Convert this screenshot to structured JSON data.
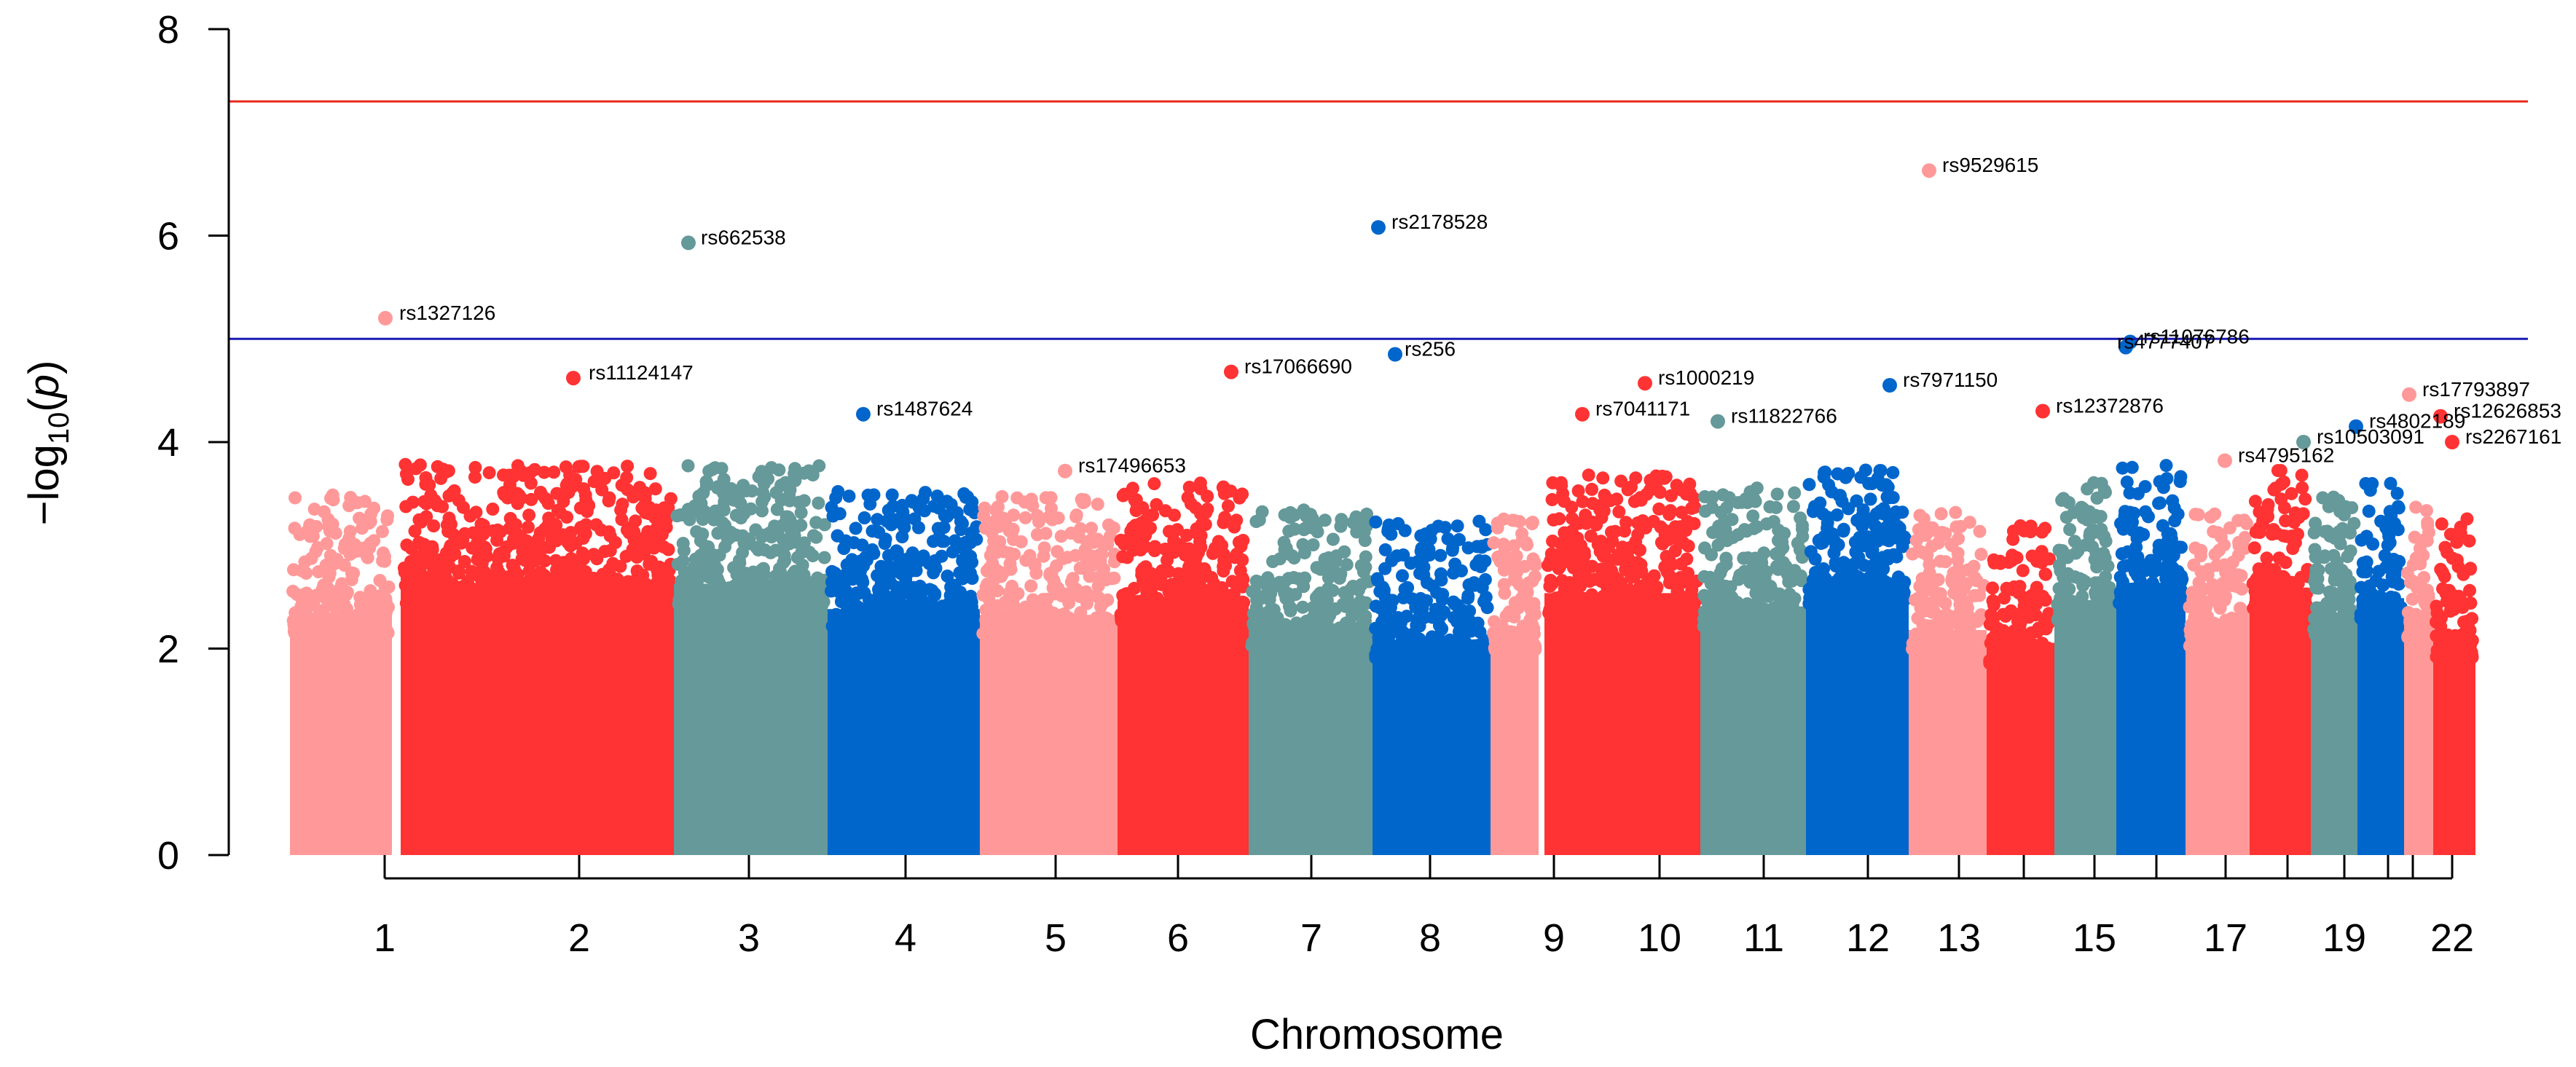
{
  "chart_data": {
    "type": "scatter",
    "title": "",
    "xlabel": "Chromosome",
    "ylabel": "−log10(p)",
    "ylim": [
      0,
      8
    ],
    "y_ticks": [
      "0",
      "2",
      "4",
      "6",
      "8"
    ],
    "x_tick_labels": [
      "1",
      "2",
      "3",
      "4",
      "5",
      "6",
      "7",
      "8",
      "9",
      "10",
      "11",
      "12",
      "13",
      "15",
      "17",
      "19",
      "22"
    ],
    "chromosomes": [
      "1",
      "2",
      "3",
      "4",
      "5",
      "6",
      "7",
      "8",
      "9",
      "10",
      "11",
      "12",
      "13",
      "14",
      "15",
      "16",
      "17",
      "18",
      "19",
      "20",
      "21",
      "22"
    ],
    "chromosome_colors": [
      "#FF9999",
      "#FF3333",
      "#669999",
      "#0066CC"
    ],
    "thresholds": [
      {
        "value": 7.3,
        "color": "#E8281E"
      },
      {
        "value": 5.0,
        "color": "#1A1AB4"
      }
    ],
    "grid": false,
    "points": [
      {
        "chr": "1",
        "snp": "rs1327126",
        "y": 5.2
      },
      {
        "chr": "3",
        "snp": "rs662538",
        "y": 5.93
      },
      {
        "chr": "2",
        "snp": "rs11124147",
        "y": 4.62
      },
      {
        "chr": "4",
        "snp": "rs1487624",
        "y": 4.27
      },
      {
        "chr": "5",
        "snp": "rs17496653",
        "y": 3.72
      },
      {
        "chr": "6",
        "snp": "rs17066690",
        "y": 4.68
      },
      {
        "chr": "8",
        "snp": "rs2178528",
        "y": 6.08
      },
      {
        "chr": "8",
        "snp": "rs256",
        "y": 4.85
      },
      {
        "chr": "10",
        "snp": "rs1000219",
        "y": 4.57
      },
      {
        "chr": "10",
        "snp": "rs7041171",
        "y": 4.27
      },
      {
        "chr": "11",
        "snp": "rs11822766",
        "y": 4.2
      },
      {
        "chr": "12",
        "snp": "rs7971150",
        "y": 4.55
      },
      {
        "chr": "13",
        "snp": "rs9529615",
        "y": 6.63
      },
      {
        "chr": "14",
        "snp": "rs12372876",
        "y": 4.3
      },
      {
        "chr": "16",
        "snp": "rs11076786",
        "y": 4.97
      },
      {
        "chr": "16",
        "snp": "rs4777407",
        "y": 4.92
      },
      {
        "chr": "17",
        "snp": "rs4795162",
        "y": 3.82
      },
      {
        "chr": "19",
        "snp": "rs10503091",
        "y": 4.0
      },
      {
        "chr": "20",
        "snp": "rs4802189",
        "y": 4.15
      },
      {
        "chr": "21",
        "snp": "rs17793897",
        "y": 4.46
      },
      {
        "chr": "22",
        "snp": "rs12626853",
        "y": 4.25
      },
      {
        "chr": "22",
        "snp": "rs2267161",
        "y": 4.0
      }
    ]
  }
}
